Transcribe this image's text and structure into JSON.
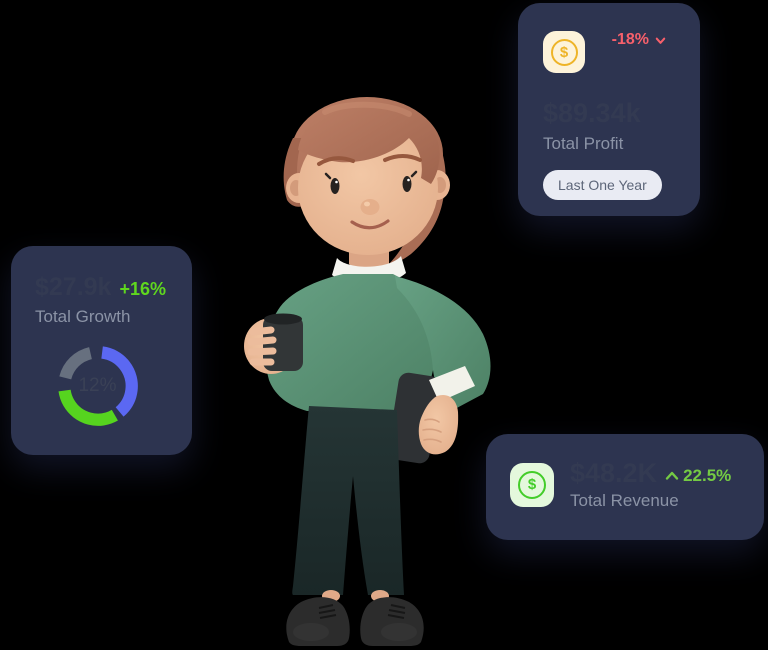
{
  "page": {
    "background": "#000000"
  },
  "illustration": {
    "description": "3D person with swept brown hair, green sweater and dark trousers, holding a dark phone in one hand and a tablet in the other"
  },
  "cards": {
    "growth": {
      "value": "$27.9k",
      "delta": "+16%",
      "label": "Total Growth",
      "donut_center": "12%"
    },
    "profit": {
      "icon": "dollar-coin-icon",
      "icon_symbol": "$",
      "delta": "-18%",
      "value": "$89.34k",
      "label": "Total Profit",
      "badge": "Last One Year"
    },
    "revenue": {
      "icon": "dollar-coin-icon",
      "icon_symbol": "$",
      "value": "$48.2K",
      "delta": "22.5%",
      "label": "Total Revenue"
    }
  },
  "chart_data": {
    "type": "pie",
    "title": "Total Growth donut",
    "center_label": "12%",
    "donut": true,
    "legend_position": "none",
    "segments": [
      {
        "name": "primary",
        "color": "#5b68f2",
        "start_deg": 7,
        "sweep_deg": 133
      },
      {
        "name": "success",
        "color": "#56d41f",
        "start_deg": 150,
        "sweep_deg": 112
      },
      {
        "name": "muted",
        "color": "#67707f",
        "start_deg": 284,
        "sweep_deg": 63
      }
    ]
  },
  "colors": {
    "card_backing": "#2d3450",
    "value_text": "#333a52",
    "label_text": "#8b93a6",
    "green_up": "#5fd71e",
    "green_revenue": "#74ca44",
    "red_down": "#f7606b",
    "amber_coin": "#eeb428",
    "green_coin": "#43cd29",
    "badge_bg": "#e9ebf3",
    "badge_text": "#5d6679"
  }
}
